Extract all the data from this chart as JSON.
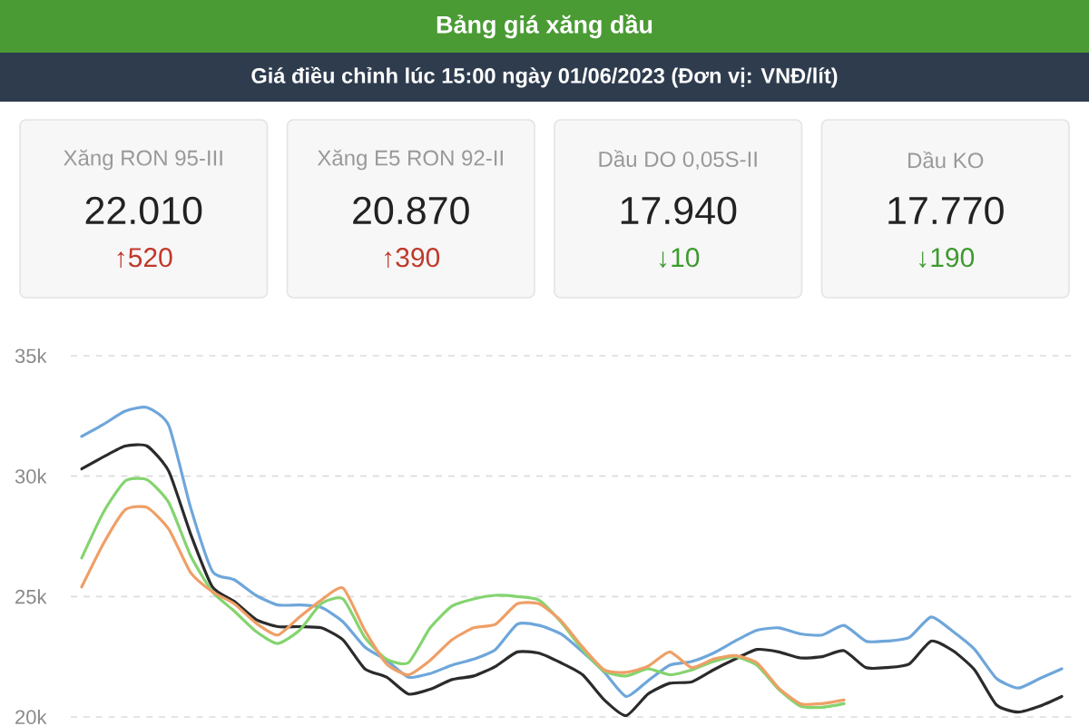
{
  "chart_data": [
    {
      "type": "other",
      "title": "Bảng giá xăng dầu",
      "subtitle": "Giá điều chỉnh lúc 15:00 ngày 01/06/2023 (Đơn vị: VNĐ/lít)",
      "categories": [
        "Xăng RON 95-III",
        "Xăng E5 RON 92-II",
        "Dầu DO 0,05S-II",
        "Dầu KO"
      ],
      "series": [
        {
          "values": [
            22010,
            20870,
            17940,
            17770
          ],
          "value_labels": [
            "22.010",
            "20.870",
            "17.940",
            "17.770"
          ]
        },
        {
          "values": [
            520,
            390,
            10,
            190
          ],
          "value_labels": [
            "↑520",
            "↑390",
            "↓10",
            "↓190"
          ],
          "colors": [
            "#c0392b",
            "#c0392b",
            "#3d9a2f",
            "#3d9a2f"
          ]
        }
      ]
    },
    {
      "type": "line",
      "categories": [
        null,
        null,
        null,
        null,
        null,
        null,
        null,
        null,
        null,
        null,
        null,
        null,
        null,
        null,
        null,
        null,
        null,
        null,
        null,
        null,
        null,
        null,
        null,
        null,
        null,
        null,
        null,
        null,
        null,
        null,
        null,
        null,
        null,
        null,
        null,
        null,
        null,
        null,
        null,
        null,
        null,
        null,
        null,
        null,
        null,
        null
      ],
      "series": [
        {
          "color": "#6ea6da",
          "values": [
            31650,
            32150,
            32700,
            32850,
            32100,
            28700,
            26050,
            25700,
            25050,
            24650,
            24650,
            24550,
            23950,
            22900,
            22350,
            21650,
            21800,
            22150,
            22400,
            22800,
            23850,
            23800,
            23450,
            22700,
            21850,
            20850,
            21500,
            22150,
            22300,
            22650,
            23150,
            23600,
            23700,
            23450,
            23400,
            23800,
            23150,
            23150,
            23300,
            24150,
            23550,
            22800,
            21600,
            21200,
            21600,
            22000
          ]
        },
        {
          "color": "#2b2b2b",
          "values": [
            30300,
            30800,
            31250,
            31250,
            30200,
            27600,
            25400,
            24800,
            24050,
            23750,
            23750,
            23700,
            23200,
            22000,
            21650,
            20950,
            21150,
            21550,
            21700,
            22100,
            22700,
            22650,
            22250,
            21750,
            20700,
            20050,
            20950,
            21400,
            21450,
            21950,
            22400,
            22800,
            22700,
            22450,
            22500,
            22750,
            22050,
            22050,
            22200,
            23150,
            22750,
            21950,
            20500,
            20200,
            20450,
            20850
          ]
        },
        {
          "color": "#84d46f",
          "values": [
            26600,
            28500,
            29800,
            29850,
            28900,
            26700,
            25200,
            24400,
            23550,
            23050,
            23600,
            24700,
            24900,
            23300,
            22400,
            22250,
            23700,
            24600,
            24900,
            25050,
            25000,
            24850,
            23950,
            22800,
            21900,
            21700,
            22000,
            21750,
            21950,
            22300,
            22500,
            22150,
            21150,
            20450,
            20400,
            20550,
            null,
            null,
            null,
            null,
            null,
            null,
            null,
            null,
            null,
            null
          ]
        },
        {
          "color": "#ef9f66",
          "values": [
            25400,
            27200,
            28600,
            28700,
            27800,
            26000,
            25200,
            24700,
            23900,
            23400,
            24150,
            24850,
            25350,
            23600,
            22200,
            21750,
            22350,
            23200,
            23700,
            23850,
            24700,
            24700,
            24000,
            22900,
            21950,
            21850,
            22100,
            22700,
            22050,
            22400,
            22550,
            22250,
            21200,
            20550,
            20550,
            20700,
            null,
            null,
            null,
            null,
            null,
            null,
            null,
            null,
            null,
            null
          ]
        }
      ],
      "ylim": [
        20000,
        35000
      ],
      "yticks": [
        {
          "value": 20000,
          "label": "20k"
        },
        {
          "value": 25000,
          "label": "25k"
        },
        {
          "value": 30000,
          "label": "30k"
        },
        {
          "value": 35000,
          "label": "35k"
        }
      ],
      "grid": "y",
      "marker": "none"
    }
  ]
}
